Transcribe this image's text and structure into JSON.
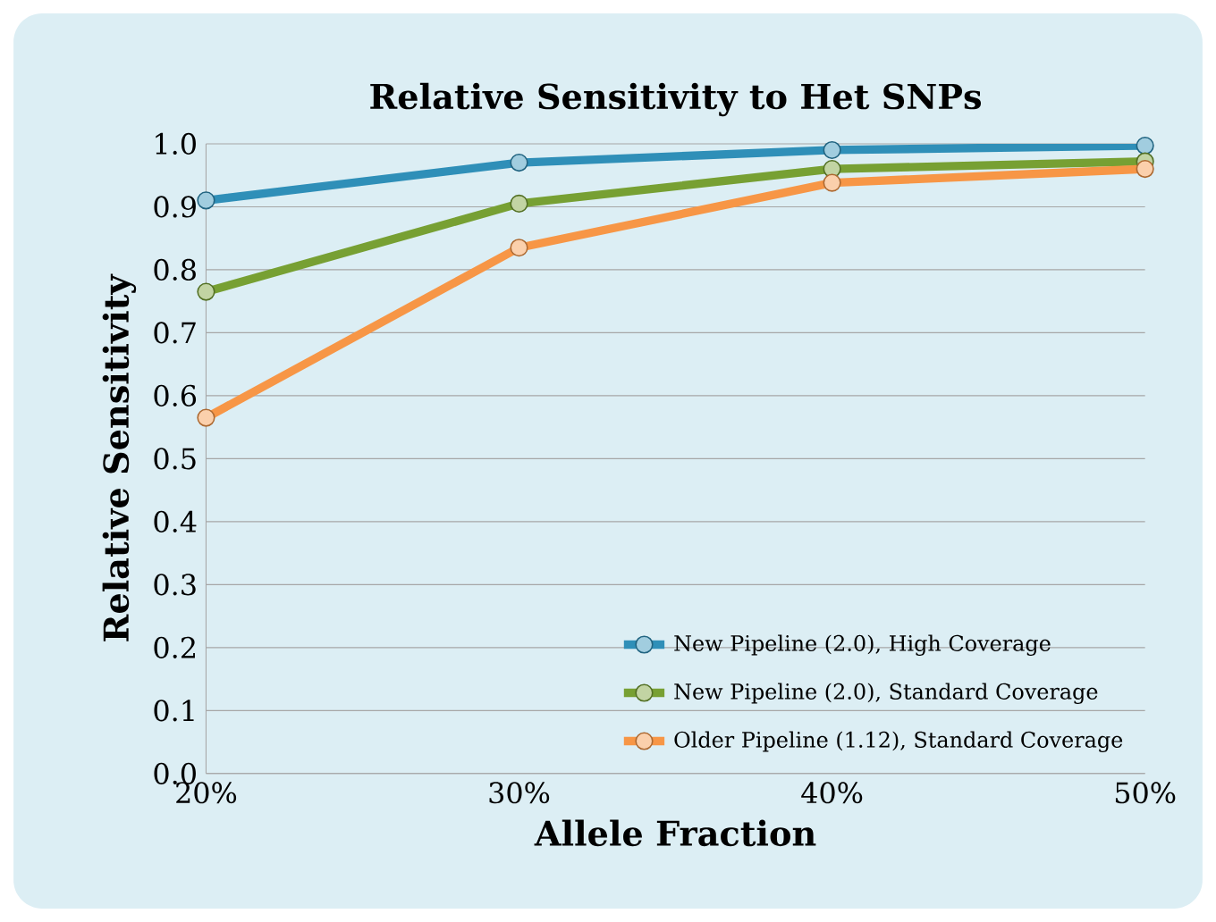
{
  "chart_data": {
    "type": "line",
    "title": "Relative Sensitivity to Het SNPs",
    "xlabel": "Allele Fraction",
    "ylabel": "Relative Sensitivity",
    "x": [
      20,
      30,
      40,
      50
    ],
    "xlim": [
      20,
      50
    ],
    "xticks": [
      {
        "value": 20,
        "label": "20%"
      },
      {
        "value": 30,
        "label": "30%"
      },
      {
        "value": 40,
        "label": "40%"
      },
      {
        "value": 50,
        "label": "50%"
      }
    ],
    "ylim": [
      0,
      1
    ],
    "yticks": [
      {
        "value": 0,
        "label": "0.0"
      },
      {
        "value": 0.1,
        "label": "0.1"
      },
      {
        "value": 0.2,
        "label": "0.2"
      },
      {
        "value": 0.3,
        "label": "0.3"
      },
      {
        "value": 0.4,
        "label": "0.4"
      },
      {
        "value": 0.5,
        "label": "0.5"
      },
      {
        "value": 0.6,
        "label": "0.6"
      },
      {
        "value": 0.7,
        "label": "0.7"
      },
      {
        "value": 0.8,
        "label": "0.8"
      },
      {
        "value": 0.9,
        "label": "0.9"
      },
      {
        "value": 1,
        "label": "1.0"
      }
    ],
    "grid": "y",
    "legend": "bottom right",
    "marker": "circle",
    "line_style": "solid",
    "series": [
      {
        "name": "New Pipeline (2.0), High Coverage",
        "color": "#2f8fb8",
        "values": [
          0.91,
          0.97,
          0.99,
          0.997
        ]
      },
      {
        "name": "New Pipeline (2.0), Standard Coverage",
        "color": "#77a033",
        "values": [
          0.765,
          0.905,
          0.96,
          0.972
        ]
      },
      {
        "name": "Older Pipeline (1.12), Standard Coverage",
        "color": "#f79646",
        "values": [
          0.565,
          0.835,
          0.938,
          0.96
        ]
      }
    ]
  }
}
